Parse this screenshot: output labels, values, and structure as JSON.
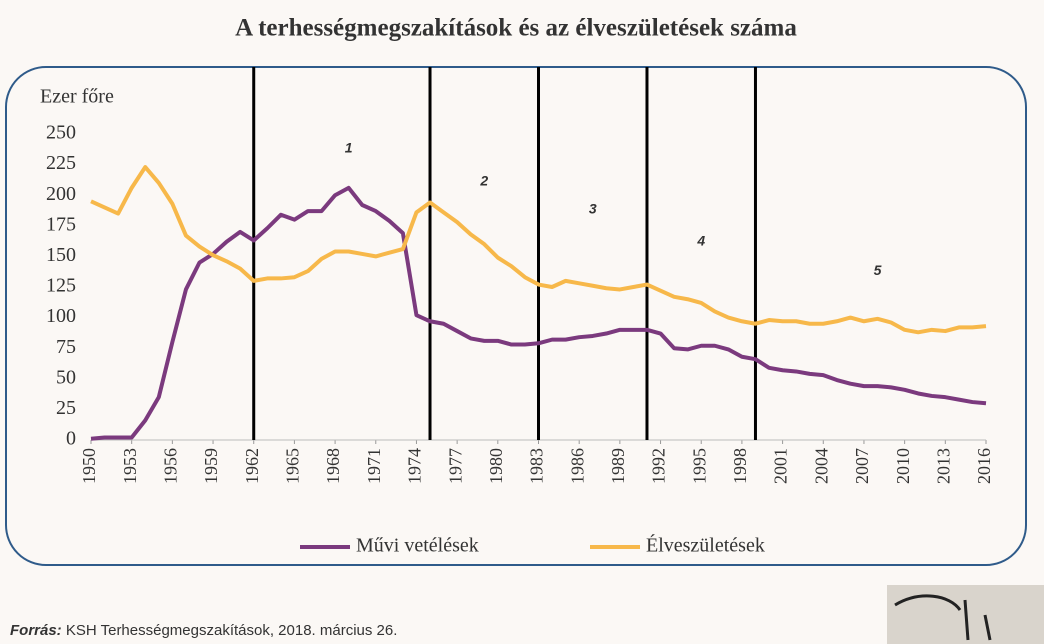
{
  "chart_data": {
    "type": "line",
    "title": "A terhességmegszakítások és az élveszületések száma",
    "y_label": "Ezer főre",
    "x": [
      1950,
      1951,
      1952,
      1953,
      1954,
      1955,
      1956,
      1957,
      1958,
      1959,
      1960,
      1961,
      1962,
      1963,
      1964,
      1965,
      1966,
      1967,
      1968,
      1969,
      1970,
      1971,
      1972,
      1973,
      1974,
      1975,
      1976,
      1977,
      1978,
      1979,
      1980,
      1981,
      1982,
      1983,
      1984,
      1985,
      1986,
      1987,
      1988,
      1989,
      1990,
      1991,
      1992,
      1993,
      1994,
      1995,
      1996,
      1997,
      1998,
      1999,
      2000,
      2001,
      2002,
      2003,
      2004,
      2005,
      2006,
      2007,
      2008,
      2009,
      2010,
      2011,
      2012,
      2013,
      2014,
      2015,
      2016
    ],
    "series": [
      {
        "name": "Művi vetélések",
        "color": "#7b3a7e",
        "values": [
          1,
          2,
          2,
          2,
          16,
          35,
          80,
          123,
          145,
          152,
          162,
          170,
          163,
          173,
          184,
          180,
          187,
          187,
          200,
          206,
          192,
          187,
          179,
          169,
          102,
          97,
          95,
          89,
          83,
          81,
          81,
          78,
          78,
          79,
          82,
          82,
          84,
          85,
          87,
          90,
          90,
          90,
          87,
          75,
          74,
          77,
          77,
          74,
          68,
          66,
          59,
          57,
          56,
          54,
          53,
          49,
          46,
          44,
          44,
          43,
          41,
          38,
          36,
          35,
          33,
          31,
          30
        ]
      },
      {
        "name": "Élveszületések",
        "color": "#f7b84a",
        "values": [
          195,
          190,
          185,
          206,
          223,
          210,
          193,
          167,
          158,
          151,
          146,
          140,
          130,
          132,
          132,
          133,
          138,
          148,
          154,
          154,
          152,
          150,
          153,
          156,
          186,
          194,
          186,
          178,
          168,
          160,
          149,
          142,
          133,
          127,
          125,
          130,
          128,
          126,
          124,
          123,
          125,
          127,
          122,
          117,
          115,
          112,
          105,
          100,
          97,
          95,
          98,
          97,
          97,
          95,
          95,
          97,
          100,
          97,
          99,
          96,
          90,
          88,
          90,
          89,
          92,
          92,
          93
        ]
      }
    ],
    "xlim": [
      1950,
      2016
    ],
    "xticks": [
      1950,
      1953,
      1956,
      1959,
      1962,
      1965,
      1968,
      1971,
      1974,
      1977,
      1980,
      1983,
      1986,
      1989,
      1992,
      1995,
      1998,
      2001,
      2004,
      2007,
      2010,
      2013,
      2016
    ],
    "ylim": [
      0,
      250
    ],
    "yticks": [
      0,
      25,
      50,
      75,
      100,
      125,
      150,
      175,
      200,
      225,
      250
    ],
    "vlines": [
      1962,
      1975,
      1983,
      1991,
      1999
    ],
    "annotations": [
      {
        "text": "1",
        "x": 1969,
        "y": 238
      },
      {
        "text": "2",
        "x": 1979,
        "y": 211
      },
      {
        "text": "3",
        "x": 1987,
        "y": 188
      },
      {
        "text": "4",
        "x": 1995,
        "y": 162
      },
      {
        "text": "5",
        "x": 2008,
        "y": 138
      }
    ],
    "legend": "bottom",
    "source": {
      "label": "Forrás:",
      "text": "KSH Terhességmegszakítások, 2018. március 26."
    }
  }
}
